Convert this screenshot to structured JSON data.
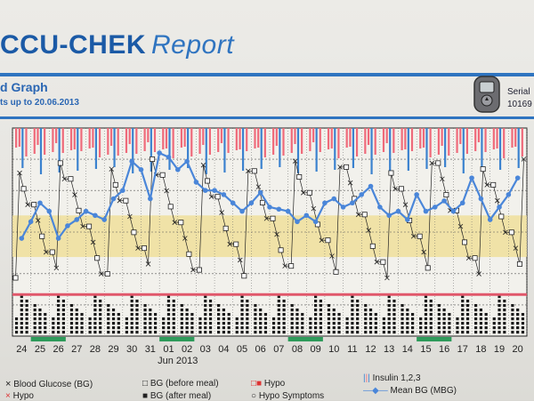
{
  "header": {
    "brand": "CCU-CHEK",
    "brand_suffix": "Report",
    "graph_title": "d Graph",
    "date_range": "ts up to 20.06.2013",
    "serial_label": "Serial",
    "serial_number": "10169"
  },
  "legend": {
    "bg": "Blood Glucose (BG)",
    "bg_before": "BG (before meal)",
    "hypo": "Hypo",
    "insulin": "Insulin 1,2,3",
    "hypo2": "Hypo",
    "bg_after": "BG (after meal)",
    "hypo_symptoms": "Hypo Symptoms",
    "mean_bg": "Mean BG (MBG)"
  },
  "chart_data": {
    "type": "line",
    "x_tick_labels": [
      "24",
      "25",
      "26",
      "27",
      "28",
      "29",
      "30",
      "31",
      "01",
      "02",
      "03",
      "04",
      "05",
      "06",
      "07",
      "08",
      "09",
      "10",
      "11",
      "12",
      "13",
      "14",
      "15",
      "16",
      "17",
      "18",
      "19",
      "20"
    ],
    "x_caption": "Jun 2013",
    "target_band": [
      0.38,
      0.58
    ],
    "hypo_line": 0.2,
    "series": [
      {
        "name": "Mean BG (MBG)",
        "x": [
          0.0,
          0.5,
          1.0,
          1.5,
          2.0,
          2.5,
          3.0,
          3.5,
          4.0,
          4.5,
          5.0,
          5.5,
          6.0,
          6.5,
          7.0,
          7.5,
          8.0,
          8.5,
          9.0,
          9.5,
          10.0,
          10.5,
          11.0,
          11.5,
          12.0,
          12.5,
          13.0,
          13.5,
          14.0,
          14.5,
          15.0,
          15.5,
          16.0,
          16.5,
          17.0,
          17.5,
          18.0,
          18.5,
          19.0,
          19.5,
          20.0,
          20.5,
          21.0,
          21.5,
          22.0,
          22.5,
          23.0,
          23.5,
          24.0,
          24.5,
          25.0,
          25.5,
          26.0,
          26.5,
          27.0
        ],
        "values": [
          0.47,
          0.55,
          0.64,
          0.6,
          0.47,
          0.53,
          0.56,
          0.6,
          0.58,
          0.56,
          0.66,
          0.7,
          0.84,
          0.8,
          0.66,
          0.88,
          0.86,
          0.8,
          0.84,
          0.74,
          0.7,
          0.7,
          0.68,
          0.64,
          0.6,
          0.64,
          0.69,
          0.62,
          0.61,
          0.6,
          0.55,
          0.58,
          0.55,
          0.64,
          0.66,
          0.62,
          0.64,
          0.68,
          0.72,
          0.62,
          0.58,
          0.6,
          0.56,
          0.68,
          0.6,
          0.62,
          0.65,
          0.6,
          0.64,
          0.76,
          0.66,
          0.56,
          0.62,
          0.68,
          0.76
        ]
      }
    ]
  },
  "colors": {
    "mean_line": "#4a86d9",
    "hypo_line": "#e0576a",
    "target_band": "#efe0a0",
    "insulin_red": "#ef6a7a",
    "insulin_blue": "#3b82cf",
    "brand": "#1b5aa6"
  }
}
